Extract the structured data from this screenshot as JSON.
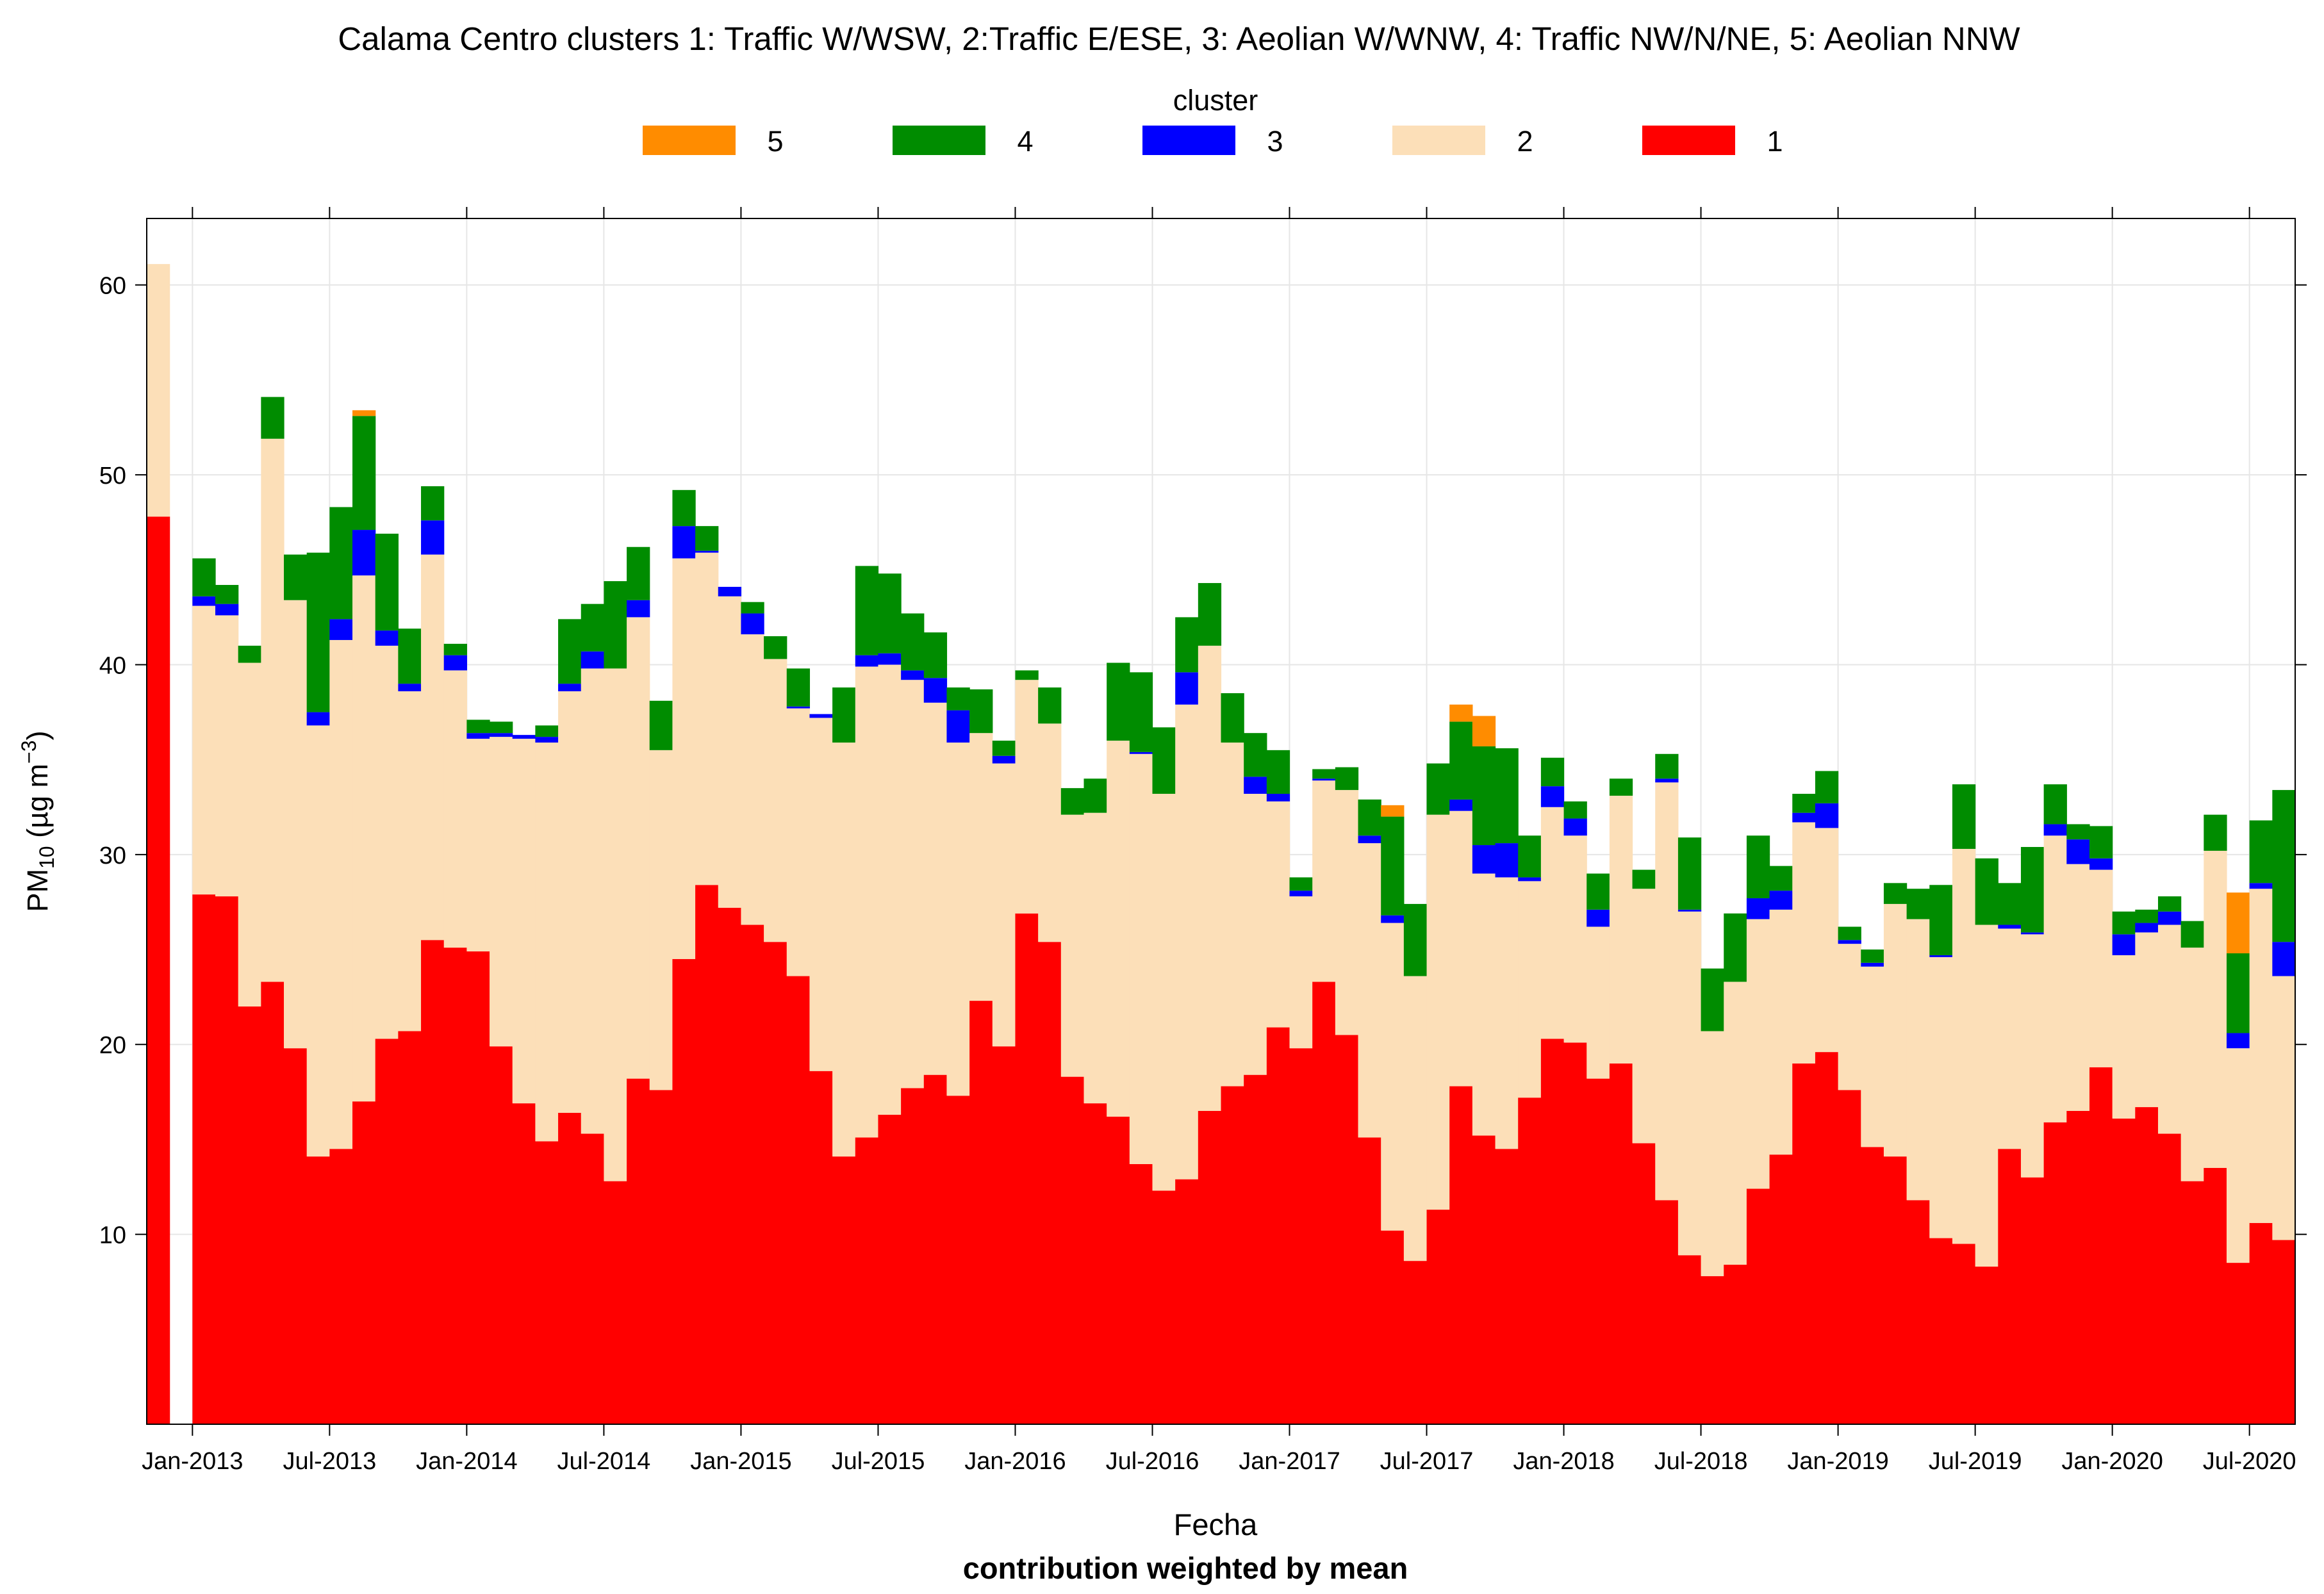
{
  "chart_data": {
    "type": "bar",
    "stacked": true,
    "title": "Calama Centro clusters 1: Traffic W/WSW, 2:Traffic E/ESE, 3: Aeolian W/WNW, 4: Traffic NW/N/NE, 5: Aeolian NNW",
    "xlabel": "Fecha",
    "subtitle": "contribution weighted by mean",
    "ylabel_main": "PM",
    "ylabel_sub": "10",
    "ylabel_unit_open": " (µg m",
    "ylabel_unit_exp": "−3",
    "ylabel_unit_close": ")",
    "ylim": [
      0,
      63.5
    ],
    "yticks": [
      10,
      20,
      30,
      40,
      50,
      60
    ],
    "grid": true,
    "legend_title": "cluster",
    "legend_position": "top",
    "legend_order": [
      "5",
      "4",
      "3",
      "2",
      "1"
    ],
    "start_month": "2012-11",
    "xtick_labels": [
      "Jan-2013",
      "Jul-2013",
      "Jan-2014",
      "Jul-2014",
      "Jan-2015",
      "Jul-2015",
      "Jan-2016",
      "Jul-2016",
      "Jan-2017",
      "Jul-2017",
      "Jan-2018",
      "Jul-2018",
      "Jan-2019",
      "Jul-2019",
      "Jan-2020",
      "Jul-2020"
    ],
    "xtick_month_index": [
      2,
      8,
      14,
      20,
      26,
      32,
      38,
      44,
      50,
      56,
      62,
      68,
      74,
      80,
      86,
      92
    ],
    "series": [
      {
        "name": "1",
        "color": "#ff0000",
        "values": [
          47.8,
          null,
          27.9,
          27.8,
          22.0,
          23.3,
          19.8,
          14.1,
          14.5,
          17.0,
          20.3,
          20.7,
          25.5,
          25.1,
          24.9,
          19.9,
          16.9,
          14.9,
          16.4,
          15.3,
          12.8,
          18.2,
          17.6,
          24.5,
          28.4,
          27.2,
          26.3,
          25.4,
          23.6,
          18.6,
          14.1,
          15.1,
          16.3,
          17.7,
          18.4,
          17.3,
          22.3,
          19.9,
          26.9,
          25.4,
          18.3,
          16.9,
          16.2,
          13.7,
          12.3,
          12.9,
          16.5,
          17.8,
          18.4,
          20.9,
          19.8,
          23.3,
          20.5,
          15.1,
          10.2,
          8.6,
          11.3,
          17.8,
          15.2,
          14.5,
          17.2,
          20.3,
          20.1,
          18.2,
          19.0,
          14.8,
          11.8,
          8.9,
          7.8,
          8.4,
          12.4,
          14.2,
          19.0,
          19.6,
          17.6,
          14.6,
          14.1,
          11.8,
          9.8,
          9.5,
          8.3,
          14.5,
          13.0,
          15.9,
          16.5,
          18.8,
          16.1,
          16.7,
          15.3,
          12.8,
          13.5,
          8.5,
          10.6,
          9.7
        ]
      },
      {
        "name": "2",
        "color": "#fcdfb8",
        "values": [
          13.3,
          null,
          15.2,
          14.8,
          18.1,
          28.6,
          23.6,
          22.7,
          26.8,
          27.7,
          20.7,
          17.9,
          20.3,
          14.6,
          11.2,
          16.3,
          19.2,
          21.0,
          22.2,
          24.5,
          27.0,
          24.3,
          17.9,
          21.1,
          17.5,
          16.4,
          15.3,
          14.9,
          14.1,
          18.6,
          21.8,
          24.8,
          23.7,
          21.5,
          19.6,
          18.6,
          14.1,
          14.9,
          12.3,
          11.5,
          13.8,
          15.3,
          19.8,
          21.6,
          20.9,
          25.0,
          24.5,
          18.1,
          14.8,
          11.9,
          8.0,
          10.6,
          12.9,
          15.5,
          16.2,
          15.0,
          20.8,
          14.5,
          13.8,
          14.3,
          11.4,
          12.2,
          10.9,
          8.0,
          14.1,
          13.4,
          22.0,
          18.1,
          12.9,
          14.9,
          14.2,
          12.9,
          12.7,
          11.8,
          7.7,
          9.5,
          13.3,
          14.8,
          14.8,
          20.8,
          18.0,
          11.6,
          12.8,
          15.1,
          13.0,
          10.4,
          8.6,
          9.2,
          11.0,
          12.3,
          16.7,
          11.3,
          17.6,
          13.9
        ]
      },
      {
        "name": "3",
        "color": "#0000ff",
        "values": [
          0,
          null,
          0.5,
          0.6,
          0,
          0,
          0,
          0.7,
          1.1,
          2.4,
          0.8,
          0.4,
          1.8,
          0.8,
          0.3,
          0.2,
          0.2,
          0.3,
          0.4,
          0.9,
          0,
          0.9,
          0,
          1.7,
          0.1,
          0.5,
          1.1,
          0,
          0.1,
          0.2,
          0,
          0.6,
          0.6,
          0.5,
          1.3,
          1.7,
          0,
          0.4,
          0,
          0,
          0,
          0,
          0,
          0.1,
          0,
          1.7,
          0,
          0,
          0.9,
          0.4,
          0.3,
          0.1,
          0,
          0.4,
          0.4,
          0,
          0,
          0.6,
          1.5,
          1.8,
          0.2,
          1.1,
          0.9,
          0.9,
          0,
          0,
          0.2,
          0.1,
          0,
          0,
          1.1,
          1.0,
          0.5,
          1.3,
          0.2,
          0.2,
          0,
          0,
          0.1,
          0,
          0,
          0.2,
          0.1,
          0.6,
          1.3,
          0.6,
          1.1,
          0.5,
          0.7,
          0,
          0,
          0.8,
          0.3,
          1.8
        ]
      },
      {
        "name": "4",
        "color": "#008c00",
        "values": [
          0,
          null,
          2.0,
          1.0,
          0.9,
          2.2,
          2.4,
          8.4,
          5.9,
          6.0,
          5.1,
          2.9,
          1.8,
          0.6,
          0.7,
          0.6,
          0,
          0.6,
          3.4,
          2.5,
          4.6,
          2.8,
          2.6,
          1.9,
          1.3,
          0,
          0.6,
          1.2,
          2.0,
          0,
          2.9,
          4.7,
          4.2,
          3.0,
          2.4,
          1.2,
          2.3,
          0.8,
          0.5,
          1.9,
          1.4,
          1.8,
          4.1,
          4.2,
          3.5,
          2.9,
          3.3,
          2.6,
          2.3,
          2.3,
          0.7,
          0.5,
          1.2,
          1.9,
          5.2,
          3.8,
          2.7,
          4.1,
          5.2,
          5.0,
          2.2,
          1.5,
          0.9,
          1.9,
          0.9,
          1.0,
          1.3,
          3.8,
          3.3,
          3.6,
          3.3,
          1.3,
          1.0,
          1.7,
          0.7,
          0.7,
          1.1,
          1.6,
          3.7,
          3.4,
          3.5,
          2.2,
          4.5,
          2.1,
          0.8,
          1.7,
          1.2,
          0.7,
          0.8,
          1.4,
          1.9,
          4.2,
          3.3,
          8.0
        ]
      },
      {
        "name": "5",
        "color": "#ff8c00",
        "values": [
          0,
          null,
          0,
          0,
          0,
          0,
          0,
          0,
          0,
          0.3,
          0,
          0,
          0,
          0,
          0,
          0,
          0,
          0,
          0,
          0,
          0,
          0,
          0,
          0,
          0,
          0,
          0,
          0,
          0,
          0,
          0,
          0,
          0,
          0,
          0,
          0,
          0,
          0,
          0,
          0,
          0,
          0,
          0,
          0,
          0,
          0,
          0,
          0,
          0,
          0,
          0,
          0,
          0,
          0,
          0.6,
          0,
          0,
          0.9,
          1.6,
          0,
          0,
          0,
          0,
          0,
          0,
          0,
          0,
          0,
          0,
          0,
          0,
          0,
          0,
          0,
          0,
          0,
          0,
          0,
          0,
          0,
          0,
          0,
          0,
          0,
          0,
          0,
          0,
          0,
          0,
          0,
          0,
          3.2,
          0,
          0
        ]
      }
    ]
  }
}
